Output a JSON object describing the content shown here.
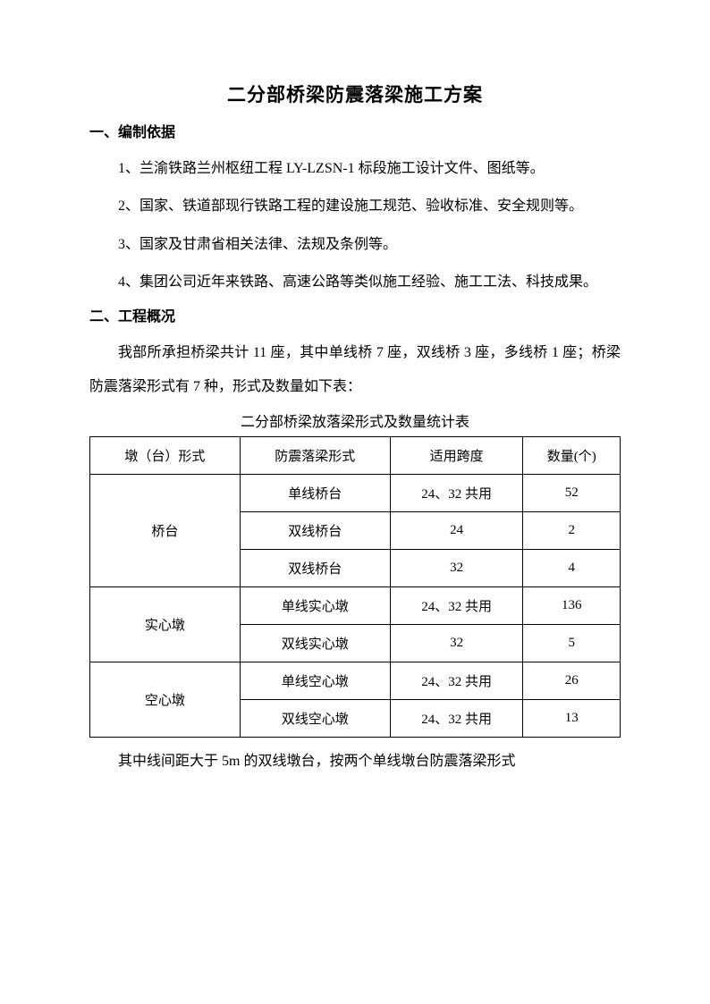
{
  "title": "二分部桥梁防震落梁施工方案",
  "section1": {
    "heading": "一、编制依据",
    "p1": "1、兰渝铁路兰州枢纽工程 LY-LZSN-1 标段施工设计文件、图纸等。",
    "p2": "2、国家、铁道部现行铁路工程的建设施工规范、验收标准、安全规则等。",
    "p3": "3、国家及甘肃省相关法律、法规及条例等。",
    "p4": "4、集团公司近年来铁路、高速公路等类似施工经验、施工工法、科技成果。"
  },
  "section2": {
    "heading": "二、工程概况",
    "p1": "我部所承担桥梁共计 11 座，其中单线桥 7 座，双线桥 3 座，多线桥 1 座；桥梁防震落梁形式有 7 种，形式及数量如下表："
  },
  "table": {
    "caption": "二分部桥梁放落梁形式及数量统计表",
    "headers": {
      "c1": "墩（台）形式",
      "c2": "防震落梁形式",
      "c3": "适用跨度",
      "c4": "数量(个)"
    },
    "groups": [
      {
        "label": "桥台",
        "rows": [
          {
            "form": "单线桥台",
            "span": "24、32 共用",
            "qty": "52"
          },
          {
            "form": "双线桥台",
            "span": "24",
            "qty": "2"
          },
          {
            "form": "双线桥台",
            "span": "32",
            "qty": "4"
          }
        ]
      },
      {
        "label": "实心墩",
        "rows": [
          {
            "form": "单线实心墩",
            "span": "24、32 共用",
            "qty": "136"
          },
          {
            "form": "双线实心墩",
            "span": "32",
            "qty": "5"
          }
        ]
      },
      {
        "label": "空心墩",
        "rows": [
          {
            "form": "单线空心墩",
            "span": "24、32 共用",
            "qty": "26"
          },
          {
            "form": "双线空心墩",
            "span": "24、32 共用",
            "qty": "13"
          }
        ]
      }
    ]
  },
  "afterTable": "其中线间距大于 5m 的双线墩台，按两个单线墩台防震落梁形式"
}
